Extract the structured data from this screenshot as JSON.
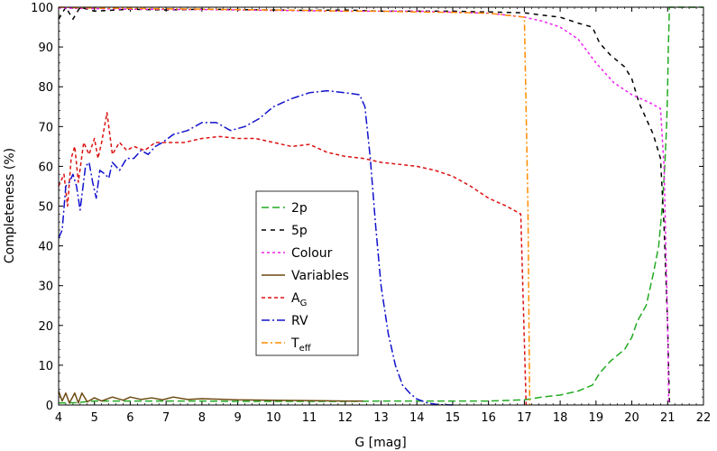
{
  "chart_data": {
    "type": "line",
    "xlabel": "G [mag]",
    "ylabel": "Completeness (%)",
    "xlim": [
      4,
      22
    ],
    "ylim": [
      0,
      100
    ],
    "xticks": [
      4,
      5,
      6,
      7,
      8,
      9,
      10,
      11,
      12,
      13,
      14,
      15,
      16,
      17,
      18,
      19,
      20,
      21,
      22
    ],
    "yticks": [
      0,
      10,
      20,
      30,
      40,
      50,
      60,
      70,
      80,
      90,
      100
    ],
    "legend_position": "center",
    "series": [
      {
        "name": "2p",
        "label_main": "2p",
        "label_sub": "",
        "color": "#22aa22",
        "dash": "8,4",
        "points": [
          [
            4,
            0.5
          ],
          [
            4.5,
            0.6
          ],
          [
            5,
            1
          ],
          [
            6,
            1
          ],
          [
            7,
            1
          ],
          [
            8,
            1
          ],
          [
            9,
            0.9
          ],
          [
            10,
            0.9
          ],
          [
            11,
            0.9
          ],
          [
            12,
            0.9
          ],
          [
            13,
            1
          ],
          [
            14,
            1
          ],
          [
            15,
            1
          ],
          [
            16,
            1
          ],
          [
            17,
            1.3
          ],
          [
            17.5,
            2
          ],
          [
            18,
            2.5
          ],
          [
            18.5,
            3.5
          ],
          [
            18.9,
            5
          ],
          [
            19.1,
            8
          ],
          [
            19.4,
            11
          ],
          [
            19.8,
            14
          ],
          [
            20,
            17
          ],
          [
            20.15,
            21
          ],
          [
            20.4,
            25
          ],
          [
            20.6,
            33
          ],
          [
            20.75,
            40
          ],
          [
            20.85,
            50
          ],
          [
            20.92,
            60
          ],
          [
            20.97,
            70
          ],
          [
            21,
            80
          ],
          [
            21.02,
            90
          ],
          [
            21.05,
            100
          ],
          [
            22,
            100
          ]
        ]
      },
      {
        "name": "5p",
        "label_main": "5p",
        "label_sub": "",
        "color": "#000000",
        "dash": "5,5",
        "points": [
          [
            4,
            97
          ],
          [
            4.2,
            100
          ],
          [
            4.4,
            97
          ],
          [
            4.6,
            100
          ],
          [
            5,
            99
          ],
          [
            6,
            99.5
          ],
          [
            7,
            99.3
          ],
          [
            8,
            99.5
          ],
          [
            9,
            99.4
          ],
          [
            10,
            99.3
          ],
          [
            11,
            99.2
          ],
          [
            12,
            99.3
          ],
          [
            13,
            99
          ],
          [
            14,
            99
          ],
          [
            15,
            99
          ],
          [
            16,
            98.8
          ],
          [
            17,
            98.6
          ],
          [
            17.5,
            98
          ],
          [
            18,
            97.5
          ],
          [
            18.5,
            96
          ],
          [
            18.9,
            95
          ],
          [
            19.1,
            91
          ],
          [
            19.4,
            88
          ],
          [
            19.8,
            85
          ],
          [
            20,
            82
          ],
          [
            20.2,
            76
          ],
          [
            20.4,
            72
          ],
          [
            20.6,
            68
          ],
          [
            20.8,
            62
          ],
          [
            20.9,
            45
          ],
          [
            21,
            20
          ],
          [
            21.05,
            0
          ]
        ]
      },
      {
        "name": "Colour",
        "label_main": "Colour",
        "label_sub": "",
        "color": "#ee22ee",
        "dash": "3,3",
        "points": [
          [
            4,
            99.8
          ],
          [
            6,
            99.5
          ],
          [
            8,
            99.4
          ],
          [
            10,
            99.2
          ],
          [
            12,
            99
          ],
          [
            14,
            99
          ],
          [
            16,
            98.5
          ],
          [
            17,
            97.5
          ],
          [
            17.5,
            96.5
          ],
          [
            18,
            95
          ],
          [
            18.5,
            92
          ],
          [
            19,
            86
          ],
          [
            19.5,
            81
          ],
          [
            20,
            78
          ],
          [
            20.5,
            76
          ],
          [
            20.8,
            74.5
          ],
          [
            20.9,
            60
          ],
          [
            21,
            20
          ],
          [
            21.03,
            0
          ]
        ]
      },
      {
        "name": "Variables",
        "label_main": "Variables",
        "label_sub": "",
        "color": "#6b4a10",
        "dash": "",
        "points": [
          [
            4,
            3.5
          ],
          [
            4.1,
            1
          ],
          [
            4.2,
            3
          ],
          [
            4.3,
            0.5
          ],
          [
            4.45,
            3
          ],
          [
            4.55,
            0.5
          ],
          [
            4.65,
            3
          ],
          [
            4.8,
            0.8
          ],
          [
            5,
            1.8
          ],
          [
            5.2,
            1
          ],
          [
            5.5,
            2
          ],
          [
            5.8,
            1.2
          ],
          [
            6,
            2
          ],
          [
            6.3,
            1.4
          ],
          [
            6.6,
            1.8
          ],
          [
            6.9,
            1.3
          ],
          [
            7.2,
            2
          ],
          [
            7.6,
            1.4
          ],
          [
            8,
            1.6
          ],
          [
            9,
            1.3
          ],
          [
            10,
            1.2
          ],
          [
            11,
            1.1
          ],
          [
            12,
            1
          ],
          [
            12.5,
            1
          ]
        ]
      },
      {
        "name": "A_G",
        "label_main": "A",
        "label_sub": "G",
        "color": "#dd1111",
        "dash": "4,3",
        "points": [
          [
            4,
            55
          ],
          [
            4.15,
            58
          ],
          [
            4.25,
            50
          ],
          [
            4.35,
            62
          ],
          [
            4.45,
            65
          ],
          [
            4.55,
            56
          ],
          [
            4.7,
            66
          ],
          [
            4.85,
            63
          ],
          [
            5,
            67
          ],
          [
            5.1,
            62
          ],
          [
            5.2,
            66
          ],
          [
            5.35,
            73.5
          ],
          [
            5.5,
            63
          ],
          [
            5.7,
            66
          ],
          [
            5.9,
            64
          ],
          [
            6.1,
            65
          ],
          [
            6.4,
            64
          ],
          [
            6.7,
            66
          ],
          [
            7,
            66
          ],
          [
            7.5,
            66
          ],
          [
            8,
            67
          ],
          [
            8.5,
            67.5
          ],
          [
            9,
            67
          ],
          [
            9.5,
            67
          ],
          [
            10,
            66
          ],
          [
            10.5,
            65
          ],
          [
            11,
            65.5
          ],
          [
            11.5,
            63.5
          ],
          [
            12,
            62.5
          ],
          [
            12.5,
            62
          ],
          [
            13,
            61
          ],
          [
            13.5,
            60.5
          ],
          [
            14,
            60
          ],
          [
            14.5,
            59
          ],
          [
            15,
            57.5
          ],
          [
            15.5,
            55
          ],
          [
            16,
            52
          ],
          [
            16.5,
            50
          ],
          [
            16.9,
            48
          ],
          [
            17.05,
            0
          ]
        ]
      },
      {
        "name": "RV",
        "label_main": "RV",
        "label_sub": "",
        "color": "#1111cc",
        "dash": "9,3,2,3",
        "points": [
          [
            4,
            42
          ],
          [
            4.1,
            44
          ],
          [
            4.2,
            55
          ],
          [
            4.3,
            56
          ],
          [
            4.4,
            58
          ],
          [
            4.5,
            55
          ],
          [
            4.6,
            49
          ],
          [
            4.75,
            60
          ],
          [
            4.85,
            61
          ],
          [
            4.95,
            56
          ],
          [
            5.05,
            52
          ],
          [
            5.15,
            59
          ],
          [
            5.3,
            58
          ],
          [
            5.4,
            57
          ],
          [
            5.5,
            61
          ],
          [
            5.7,
            59
          ],
          [
            5.9,
            62
          ],
          [
            6.1,
            62
          ],
          [
            6.3,
            64
          ],
          [
            6.5,
            63
          ],
          [
            6.7,
            65
          ],
          [
            6.9,
            66
          ],
          [
            7.2,
            68
          ],
          [
            7.6,
            69
          ],
          [
            8,
            71
          ],
          [
            8.4,
            71
          ],
          [
            8.8,
            69
          ],
          [
            9.2,
            70
          ],
          [
            9.6,
            72
          ],
          [
            10,
            75
          ],
          [
            10.5,
            77
          ],
          [
            11,
            78.5
          ],
          [
            11.5,
            79
          ],
          [
            12,
            78.5
          ],
          [
            12.4,
            78
          ],
          [
            12.55,
            75
          ],
          [
            12.7,
            62
          ],
          [
            12.85,
            45
          ],
          [
            13,
            30
          ],
          [
            13.2,
            18
          ],
          [
            13.4,
            10
          ],
          [
            13.6,
            5
          ],
          [
            13.8,
            3
          ],
          [
            14,
            1.5
          ],
          [
            14.3,
            0.5
          ],
          [
            14.6,
            0.1
          ],
          [
            15,
            0
          ]
        ]
      },
      {
        "name": "T_eff",
        "label_main": "T",
        "label_sub": "eff",
        "color": "#ff8c00",
        "dash": "7,3,2,3",
        "points": [
          [
            4,
            100
          ],
          [
            5,
            99.8
          ],
          [
            6,
            99.7
          ],
          [
            7,
            99.6
          ],
          [
            8,
            99.5
          ],
          [
            9,
            99.4
          ],
          [
            10,
            99.3
          ],
          [
            11,
            99.2
          ],
          [
            12,
            99
          ],
          [
            13,
            99
          ],
          [
            14,
            98.8
          ],
          [
            15,
            98.7
          ],
          [
            16,
            98.5
          ],
          [
            16.5,
            98
          ],
          [
            17,
            97.5
          ],
          [
            17.1,
            50
          ],
          [
            17.15,
            0
          ]
        ]
      }
    ]
  }
}
